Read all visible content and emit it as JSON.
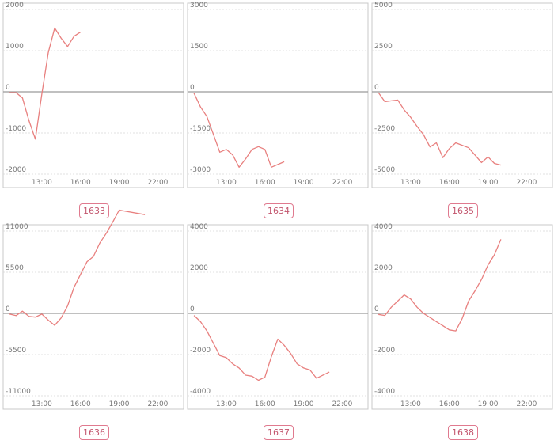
{
  "colors": {
    "line": "#e8807f",
    "zero_line": "#9a9a9a",
    "grid": "#d8d8d8",
    "frame": "#c8c8c8",
    "label_border": "#e07a8f",
    "label_text": "#c2556d",
    "tick_text": "#777777"
  },
  "chart_data": [
    {
      "type": "line",
      "label": "1633",
      "x": [
        "10:30",
        "11:00",
        "11:30",
        "12:00",
        "12:30",
        "13:00",
        "13:30",
        "14:00",
        "14:30",
        "15:00",
        "15:30",
        "16:00"
      ],
      "values": [
        -20,
        -20,
        -150,
        -700,
        -1150,
        -50,
        950,
        1550,
        1300,
        1100,
        1350,
        1450
      ],
      "xticks": [
        "13:00",
        "16:00",
        "19:00",
        "22:00"
      ],
      "yticks": [
        "2000",
        "1000",
        "0",
        "-1000",
        "-2000"
      ],
      "ylim": [
        -2000,
        2000
      ],
      "grid": true
    },
    {
      "type": "line",
      "label": "1634",
      "x": [
        "10:30",
        "11:00",
        "11:30",
        "12:00",
        "12:30",
        "13:00",
        "13:30",
        "14:00",
        "14:30",
        "15:00",
        "15:30",
        "16:00",
        "16:30",
        "17:00",
        "17:30"
      ],
      "values": [
        -50,
        -550,
        -900,
        -1550,
        -2200,
        -2100,
        -2300,
        -2750,
        -2450,
        -2100,
        -2000,
        -2100,
        -2750,
        -2650,
        -2550
      ],
      "xticks": [
        "13:00",
        "16:00",
        "19:00",
        "22:00"
      ],
      "yticks": [
        "3000",
        "1500",
        "0",
        "-1500",
        "-3000"
      ],
      "ylim": [
        -3000,
        3000
      ],
      "grid": true
    },
    {
      "type": "line",
      "label": "1635",
      "x": [
        "10:30",
        "11:00",
        "11:30",
        "12:00",
        "12:30",
        "13:00",
        "13:30",
        "14:00",
        "14:30",
        "15:00",
        "15:30",
        "16:00",
        "16:30",
        "17:00",
        "17:30",
        "18:00",
        "18:30",
        "19:00",
        "19:30",
        "20:00"
      ],
      "values": [
        -50,
        -600,
        -550,
        -500,
        -1100,
        -1550,
        -2100,
        -2600,
        -3350,
        -3100,
        -4000,
        -3450,
        -3100,
        -3250,
        -3400,
        -3850,
        -4300,
        -3950,
        -4350,
        -4450
      ],
      "xticks": [
        "13:00",
        "16:00",
        "19:00",
        "22:00"
      ],
      "yticks": [
        "5000",
        "2500",
        "0",
        "-2500",
        "-5000"
      ],
      "ylim": [
        -5000,
        5000
      ],
      "grid": true
    },
    {
      "type": "line",
      "label": "1636",
      "x": [
        "10:30",
        "11:00",
        "11:30",
        "12:00",
        "12:30",
        "13:00",
        "13:30",
        "14:00",
        "14:30",
        "15:00",
        "15:30",
        "16:00",
        "16:30",
        "17:00",
        "17:30",
        "18:00",
        "18:30",
        "19:00",
        "21:00"
      ],
      "values": [
        -100,
        -300,
        300,
        -400,
        -500,
        -100,
        -900,
        -1600,
        -600,
        1000,
        3500,
        5200,
        6900,
        7600,
        9400,
        10700,
        12200,
        13800,
        13200
      ],
      "xticks": [
        "13:00",
        "16:00",
        "19:00",
        "22:00"
      ],
      "yticks": [
        "11000",
        "5500",
        "0",
        "-5500",
        "-11000"
      ],
      "ylim": [
        -11000,
        11000
      ],
      "grid": true
    },
    {
      "type": "line",
      "label": "1637",
      "x": [
        "10:30",
        "11:00",
        "11:30",
        "12:00",
        "12:30",
        "13:00",
        "13:30",
        "14:00",
        "14:30",
        "15:00",
        "15:30",
        "16:00",
        "16:30",
        "17:00",
        "17:30",
        "18:00",
        "18:30",
        "19:00",
        "19:30",
        "20:00",
        "21:00"
      ],
      "values": [
        -100,
        -400,
        -850,
        -1450,
        -2050,
        -2150,
        -2450,
        -2650,
        -3000,
        -3050,
        -3250,
        -3100,
        -2100,
        -1250,
        -1550,
        -1950,
        -2450,
        -2650,
        -2750,
        -3150,
        -2850
      ],
      "xticks": [
        "13:00",
        "16:00",
        "19:00",
        "22:00"
      ],
      "yticks": [
        "4000",
        "2000",
        "0",
        "-2000",
        "-4000"
      ],
      "ylim": [
        -4000,
        4000
      ],
      "grid": true
    },
    {
      "type": "line",
      "label": "1638",
      "x": [
        "10:30",
        "11:00",
        "11:30",
        "12:00",
        "12:30",
        "13:00",
        "13:30",
        "14:00",
        "14:30",
        "15:00",
        "15:30",
        "16:00",
        "16:30",
        "17:00",
        "17:30",
        "18:00",
        "18:30",
        "19:00",
        "19:30",
        "20:00"
      ],
      "values": [
        -50,
        -100,
        300,
        600,
        900,
        700,
        300,
        0,
        -200,
        -400,
        -600,
        -800,
        -850,
        -250,
        600,
        1100,
        1650,
        2350,
        2850,
        3600
      ],
      "xticks": [
        "13:00",
        "16:00",
        "19:00",
        "22:00"
      ],
      "yticks": [
        "4000",
        "2000",
        "0",
        "-2000",
        "-4000"
      ],
      "ylim": [
        -4000,
        4000
      ],
      "grid": true
    }
  ]
}
